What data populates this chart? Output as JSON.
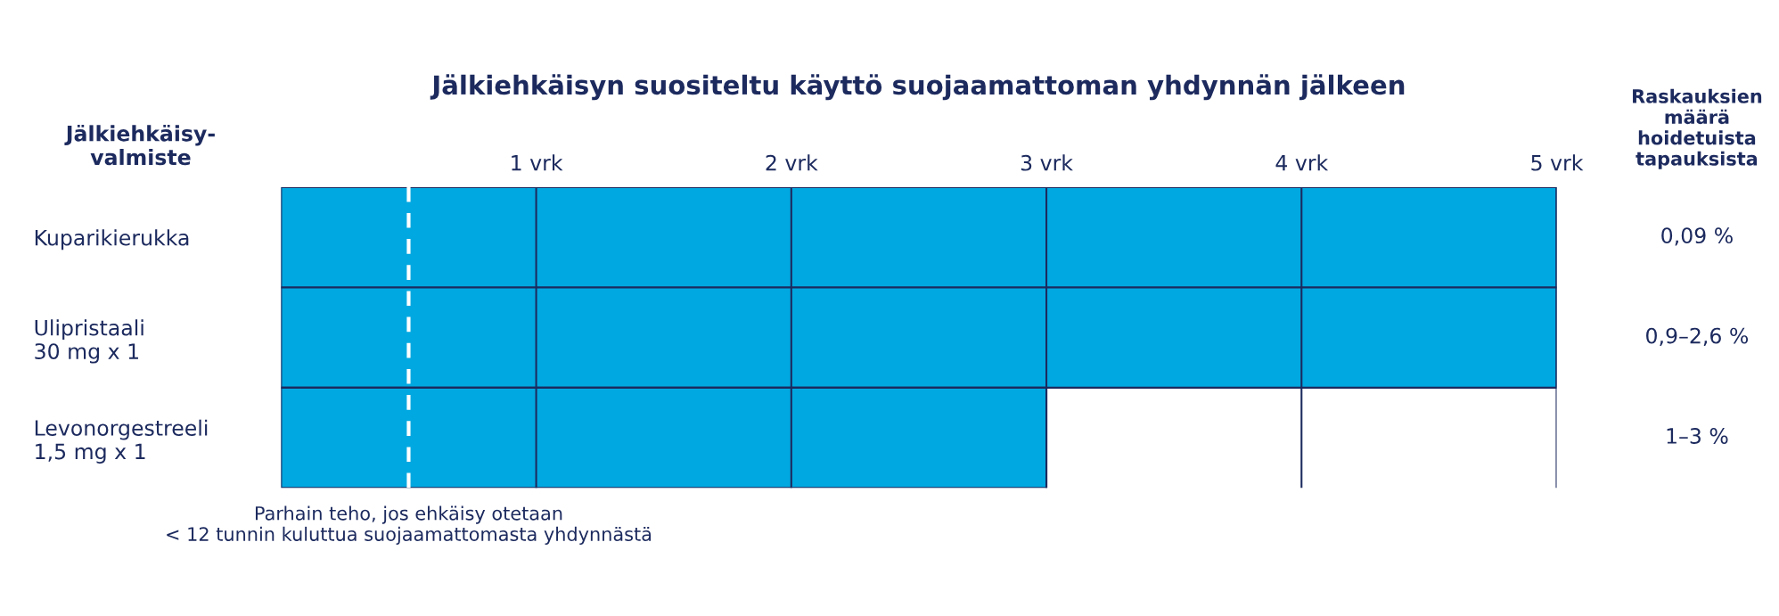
{
  "chart_data": {
    "type": "bar",
    "orientation": "horizontal",
    "title": "Jälkiehkäisyn suositeltu käyttö suojaamattoman yhdynnän jälkeen",
    "ylabel": "Jälkiehkäisy-\nvalmiste",
    "y2label": "Raskauksien\nmäärä\nhoidetuista\ntapauksista",
    "categories": [
      "Kuparikierukka",
      "Ulipristaali\n30 mg x 1",
      "Levonorgestreeli\n1,5 mg x 1"
    ],
    "values": [
      5,
      5,
      3
    ],
    "color": "#00a8e1",
    "xlim": [
      0,
      5
    ],
    "xticks": [
      {
        "value": 1,
        "label": "1 vrk"
      },
      {
        "value": 2,
        "label": "2 vrk"
      },
      {
        "value": 3,
        "label": "3 vrk"
      },
      {
        "value": 4,
        "label": "4 vrk"
      },
      {
        "value": 5,
        "label": "5 vrk"
      }
    ],
    "grid": "x",
    "ref_lines": [
      {
        "axis": "x",
        "value": 0.5,
        "label": "Parhain teho, jos ehkäisy otetaan\n< 12 tunnin kuluttua suojaamattomasta yhdynnästä",
        "color": "#ffffff",
        "line_style": "dashed"
      }
    ],
    "annotations": [
      "0,09 %",
      "0,9–2,6 %",
      "1–3 %"
    ]
  }
}
